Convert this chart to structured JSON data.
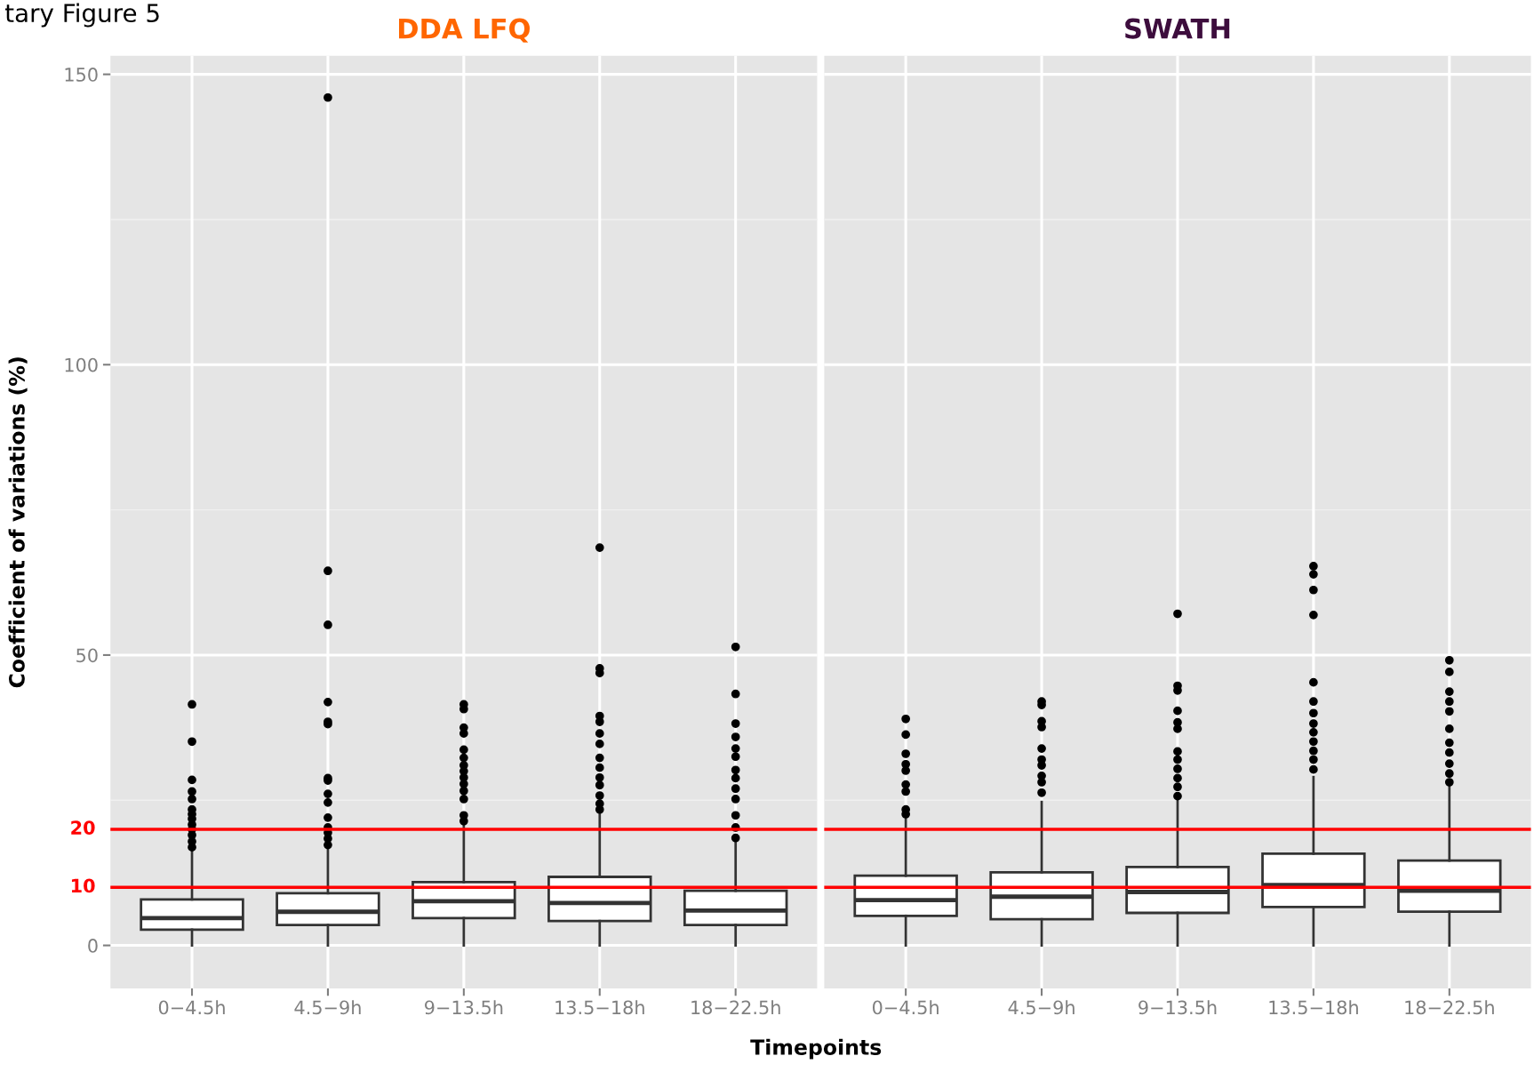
{
  "chart_data": [
    {
      "type": "box",
      "title": "DDA LFQ",
      "ylabel": "Coefficient of variations (%)",
      "xlabel": "Timepoints",
      "annotations": [
        "tary Figure 5"
      ],
      "categories": [
        "0−4.5h",
        "4.5−9h",
        "9−13.5h",
        "13.5−18h",
        "18−22.5h"
      ],
      "boxes": [
        {
          "low": 0,
          "q1": 2.7,
          "median": 4.7,
          "q3": 7.9,
          "high": 16.1,
          "outliers": [
            41.5,
            35.1,
            28.5,
            26.5,
            25.2,
            23.4,
            22.6,
            21.8,
            20.8,
            20.0,
            19.0,
            17.9,
            16.9
          ]
        },
        {
          "low": 0,
          "q1": 3.5,
          "median": 5.8,
          "q3": 9.0,
          "high": 17.1,
          "outliers": [
            146.0,
            64.5,
            55.2,
            41.9,
            38.5,
            38.1,
            28.8,
            28.4,
            26.1,
            24.6,
            22.0,
            20.3,
            19.4,
            18.4,
            17.3
          ]
        },
        {
          "low": 0,
          "q1": 4.7,
          "median": 7.6,
          "q3": 10.9,
          "high": 20.6,
          "outliers": [
            41.5,
            40.7,
            37.5,
            36.5,
            33.7,
            32.3,
            31.0,
            30.0,
            28.9,
            27.8,
            26.6,
            25.2,
            22.4,
            21.4
          ]
        },
        {
          "low": 0,
          "q1": 4.2,
          "median": 7.3,
          "q3": 11.8,
          "high": 22.6,
          "outliers": [
            68.5,
            47.7,
            46.9,
            39.5,
            38.5,
            36.5,
            34.7,
            32.3,
            30.6,
            28.9,
            27.6,
            25.8,
            24.4,
            23.4
          ]
        },
        {
          "low": 0,
          "q1": 3.5,
          "median": 6.0,
          "q3": 9.4,
          "high": 17.7,
          "outliers": [
            51.4,
            43.3,
            38.2,
            35.9,
            33.9,
            32.5,
            30.2,
            28.8,
            27.0,
            25.2,
            22.4,
            20.3,
            18.5
          ]
        }
      ],
      "ylim": [
        -7.4,
        153.2
      ],
      "yticks": [
        0,
        50,
        100,
        150
      ],
      "grid": true,
      "ref_lines": [
        {
          "axis": "y",
          "value": 20,
          "label": "20",
          "color": "#ff0000"
        },
        {
          "axis": "y",
          "value": 10,
          "label": "10",
          "color": "#ff0000"
        }
      ]
    },
    {
      "type": "box",
      "title": "SWATH",
      "tick_labels": "x",
      "categories": [
        "0−4.5h",
        "4.5−9h",
        "9−13.5h",
        "13.5−18h",
        "18−22.5h"
      ],
      "boxes": [
        {
          "low": 0,
          "q1": 5.1,
          "median": 7.8,
          "q3": 12.0,
          "high": 22.2,
          "outliers": [
            39.0,
            36.3,
            33.0,
            31.2,
            30.1,
            27.7,
            26.5,
            23.4,
            22.6
          ]
        },
        {
          "low": 0,
          "q1": 4.5,
          "median": 8.4,
          "q3": 12.6,
          "high": 24.7,
          "outliers": [
            42.0,
            41.4,
            38.6,
            37.6,
            33.9,
            32.0,
            31.0,
            29.2,
            28.1,
            26.3
          ]
        },
        {
          "low": 0,
          "q1": 5.6,
          "median": 9.2,
          "q3": 13.5,
          "high": 25.2,
          "outliers": [
            57.1,
            44.7,
            43.9,
            40.4,
            38.4,
            37.3,
            33.4,
            32.0,
            30.4,
            28.8,
            27.3,
            25.7
          ]
        },
        {
          "low": 0,
          "q1": 6.6,
          "median": 10.4,
          "q3": 15.8,
          "high": 29.0,
          "outliers": [
            65.3,
            63.9,
            61.2,
            56.9,
            45.3,
            42.0,
            40.0,
            38.2,
            36.7,
            35.1,
            33.5,
            32.0,
            30.3
          ]
        },
        {
          "low": 0,
          "q1": 5.8,
          "median": 9.4,
          "q3": 14.6,
          "high": 27.3,
          "outliers": [
            49.1,
            47.1,
            43.7,
            42.0,
            40.3,
            37.3,
            34.9,
            33.2,
            31.3,
            29.6,
            28.1
          ]
        }
      ],
      "ylim": [
        -7.4,
        153.2
      ],
      "yticks": [
        0,
        50,
        100,
        150
      ],
      "grid": true,
      "ref_lines": [
        {
          "axis": "y",
          "value": 20,
          "color": "#ff0000"
        },
        {
          "axis": "y",
          "value": 10,
          "color": "#ff0000"
        }
      ]
    }
  ]
}
